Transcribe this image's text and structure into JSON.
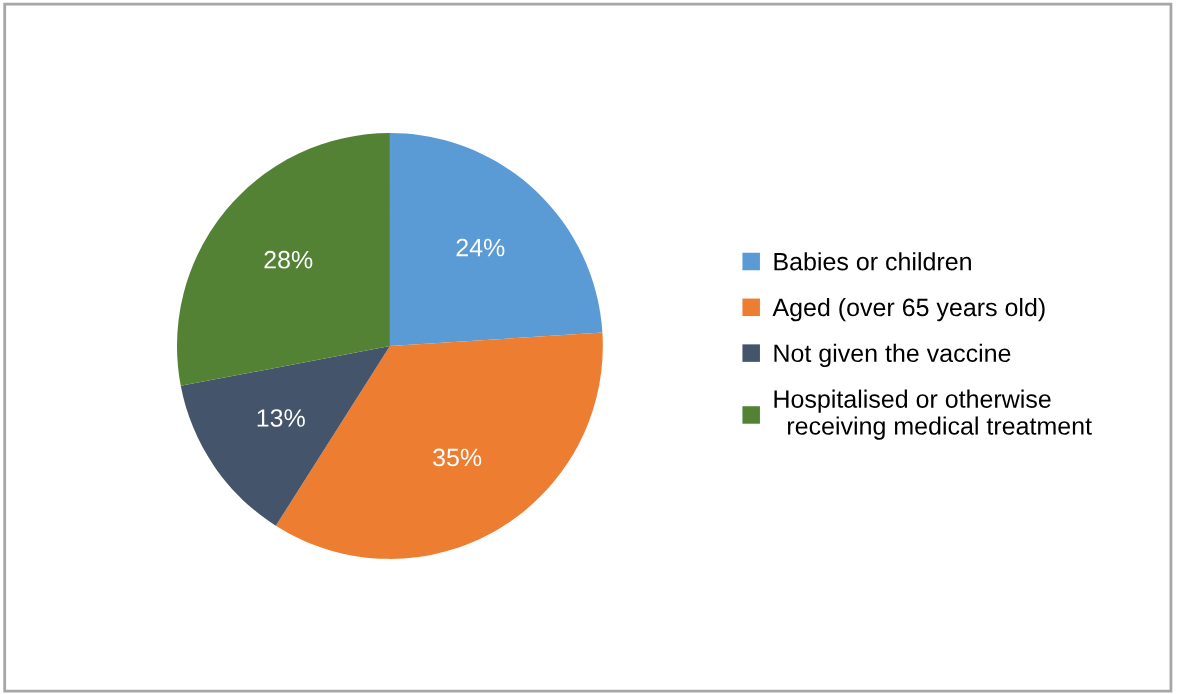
{
  "chart_data": {
    "type": "pie",
    "categories": [
      "Babies or children",
      "Aged (over 65 years old)",
      "Not given the vaccine",
      "Hospitalised or otherwise\n  receiving medical treatment"
    ],
    "values": [
      24,
      35,
      13,
      28
    ],
    "colors": [
      "#5b9bd5",
      "#ed7d31",
      "#44546a",
      "#548235"
    ],
    "value_labels": [
      "24%",
      "35%",
      "13%",
      "28%"
    ],
    "legend": "right"
  }
}
